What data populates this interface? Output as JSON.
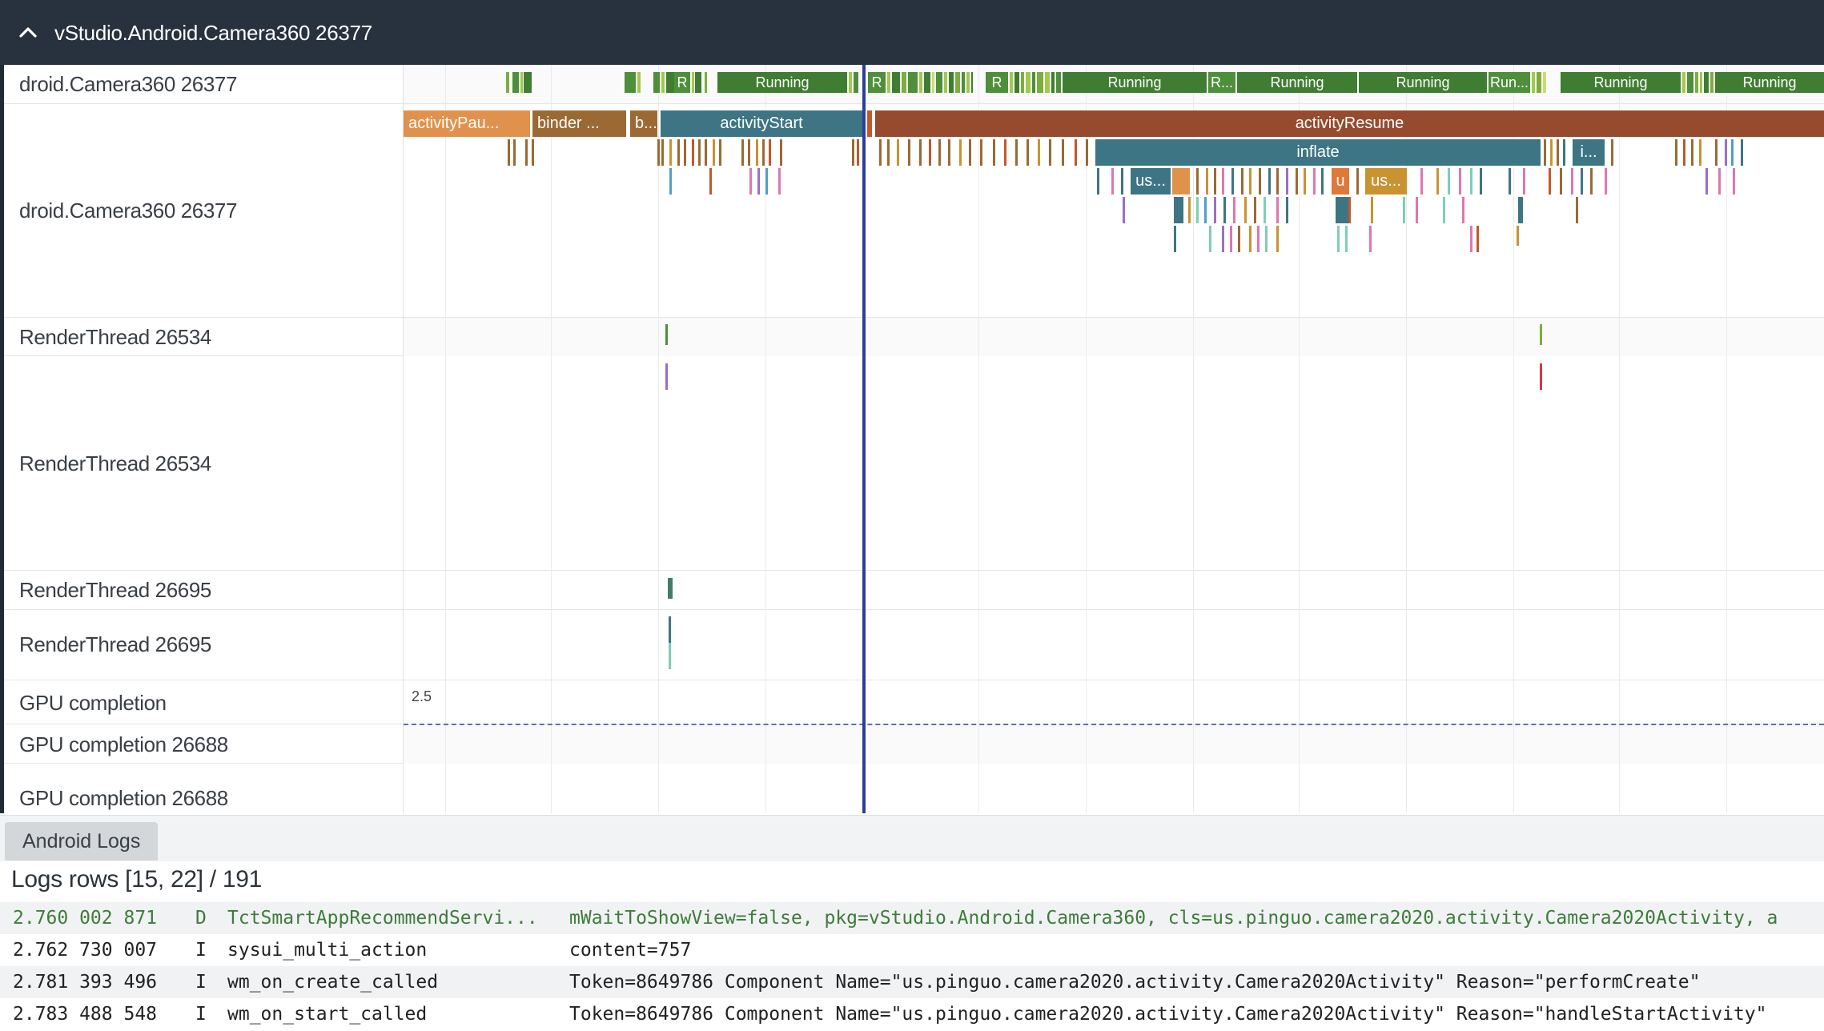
{
  "header": {
    "title": "vStudio.Android.Camera360 26377",
    "collapse_icon": "chevron-up-icon"
  },
  "tracks": {
    "t1": "droid.Camera360 26377",
    "t2": "droid.Camera360 26377",
    "t3": "RenderThread 26534",
    "t4": "RenderThread 26534",
    "t5": "RenderThread 26695",
    "t6": "RenderThread 26695",
    "t7": "GPU completion",
    "t8": "GPU completion 26688",
    "t9": "GPU completion 26688"
  },
  "thread_states": {
    "s1": "R",
    "s2": "Running",
    "s3": "R",
    "s4": "R",
    "s5": "Running",
    "s6": "R...",
    "s7": "Running",
    "s8": "Running",
    "s9": "Run...",
    "s10": "Running",
    "s11": "Running"
  },
  "slices": {
    "activity_pause": "activityPau...",
    "binder": "binder ...",
    "b": "b...",
    "activity_start": "activityStart",
    "activity_resume": "activityResume",
    "inflate": "inflate",
    "i": "i...",
    "us1": "us...",
    "u": "u",
    "us2": "us..."
  },
  "gpu": {
    "value_label": "2.5"
  },
  "bottom_panel": {
    "tab_label": "Android Logs",
    "logs_title": "Logs rows [15, 22] / 191"
  },
  "logs": [
    {
      "ts": "2.760 002 871",
      "level": "D",
      "tag": "TctSmartAppRecommendServi...",
      "msg": "mWaitToShowView=false, pkg=vStudio.Android.Camera360, cls=us.pinguo.camera2020.activity.Camera2020Activity, a"
    },
    {
      "ts": "2.762 730 007",
      "level": "I",
      "tag": "sysui_multi_action",
      "msg": "content=757"
    },
    {
      "ts": "2.781 393 496",
      "level": "I",
      "tag": "wm_on_create_called",
      "msg": "Token=8649786 Component Name=\"us.pinguo.camera2020.activity.Camera2020Activity\" Reason=\"performCreate\""
    },
    {
      "ts": "2.783 488 548",
      "level": "I",
      "tag": "wm_on_start_called",
      "msg": "Token=8649786 Component Name=\"us.pinguo.camera2020.activity.Camera2020Activity\" Reason=\"handleStartActivity\""
    }
  ]
}
